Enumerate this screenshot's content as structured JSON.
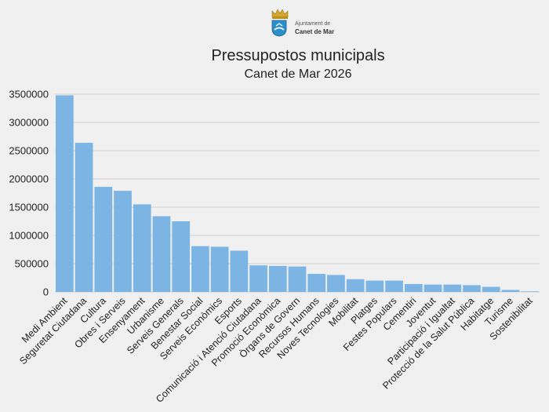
{
  "logo": {
    "line1": "Ajuntament de",
    "line2": "Canet de Mar"
  },
  "chart_data": {
    "type": "bar",
    "title": "Pressupostos municipals",
    "subtitle": "Canet de Mar 2026",
    "xlabel": "",
    "ylabel": "",
    "ylim": [
      0,
      3500000
    ],
    "yticks": [
      0,
      500000,
      1000000,
      1500000,
      2000000,
      2500000,
      3000000,
      3500000
    ],
    "grid": true,
    "bar_color": "#7cb5e4",
    "categories": [
      "Medi Ambient",
      "Seguretat Ciutadana",
      "Cultura",
      "Obres i Serveis",
      "Ensenyament",
      "Urbanisme",
      "Serveis Generals",
      "Benestar Social",
      "Serveis Econòmics",
      "Esports",
      "Comunicació i Atenció Ciutadana",
      "Promoció Econòmica",
      "Òrgans de Govern",
      "Recursos Humans",
      "Noves Tecnologies",
      "Mobilitat",
      "Platges",
      "Festes Populars",
      "Cementiri",
      "Joventut",
      "Participació i Igualtat",
      "Protecció de la Salut Pública",
      "Habitatge",
      "Turisme",
      "Sostenibilitat"
    ],
    "values": [
      3480000,
      2640000,
      1860000,
      1790000,
      1550000,
      1340000,
      1250000,
      810000,
      800000,
      730000,
      470000,
      460000,
      450000,
      320000,
      300000,
      225000,
      200000,
      200000,
      140000,
      130000,
      130000,
      120000,
      90000,
      35000,
      10000
    ]
  }
}
